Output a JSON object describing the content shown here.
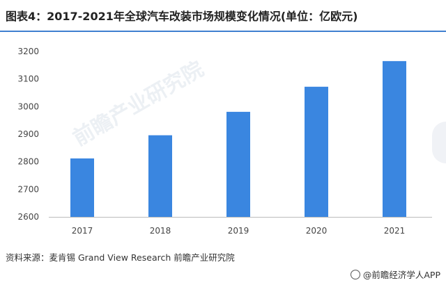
{
  "header": {
    "title": "图表4：2017-2021年全球汽车改装市场规模变化情况(单位：亿欧元)"
  },
  "chart_data": {
    "type": "bar",
    "title": "图表4：2017-2021年全球汽车改装市场规模变化情况(单位：亿欧元)",
    "categories": [
      "2017",
      "2018",
      "2019",
      "2020",
      "2021"
    ],
    "values": [
      2812,
      2896,
      2981,
      3072,
      3165
    ],
    "ylim": [
      2600,
      3200
    ],
    "yticks": [
      2600,
      2700,
      2800,
      2900,
      3000,
      3100,
      3200
    ],
    "xlabel": "",
    "ylabel": "",
    "grid": false,
    "bar_color": "#3a86e0"
  },
  "watermark": "前瞻产业研究院",
  "footer": {
    "source": "资料来源：麦肯锡 Grand View Research 前瞻产业研究院",
    "credit": "@前瞻经济学人APP"
  }
}
